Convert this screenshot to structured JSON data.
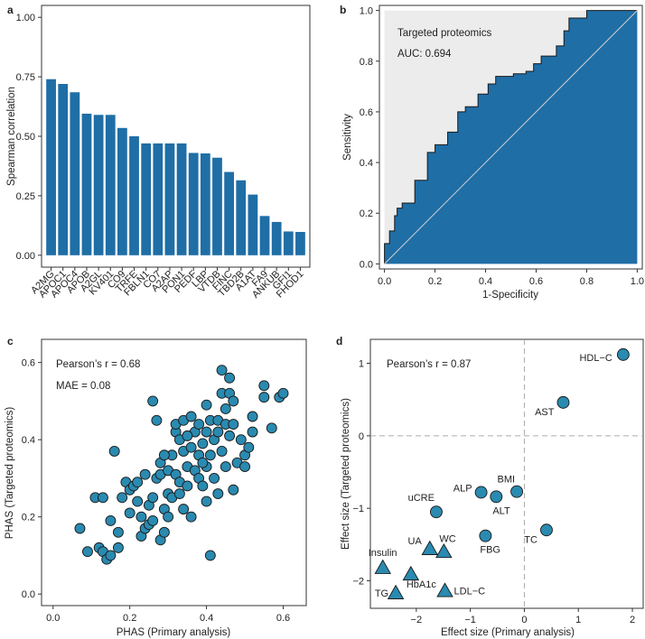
{
  "colors": {
    "bar": "#1f6ea6",
    "marker": "#2a8ab0",
    "roc_fill": "#1f6ea6",
    "roc_shade": "#ececec",
    "axis": "#333333",
    "dash": "#aaaaaa"
  },
  "chart_data": [
    {
      "panel": "a",
      "type": "bar",
      "ylabel": "Spearman correlation",
      "ylim": [
        -0.05,
        1.05
      ],
      "yticks": [
        0.0,
        0.25,
        0.5,
        0.75,
        1.0
      ],
      "ytick_labels": [
        "0.00",
        "0.25",
        "0.50",
        "0.75",
        "1.00"
      ],
      "categories": [
        "A2MG",
        "APOC1",
        "APOC4",
        "APOB",
        "A2GL",
        "KV401",
        "CO9",
        "TRFE",
        "FBLN1",
        "CO7",
        "A2AP",
        "PON1",
        "PEDF",
        "LBP",
        "VTDB",
        "FINC",
        "TBD2B",
        "A1AT",
        "FA9",
        "ANKUB",
        "GFI1",
        "FHOD1"
      ],
      "values": [
        0.74,
        0.72,
        0.685,
        0.595,
        0.59,
        0.59,
        0.535,
        0.5,
        0.47,
        0.47,
        0.47,
        0.47,
        0.43,
        0.428,
        0.41,
        0.35,
        0.315,
        0.255,
        0.165,
        0.14,
        0.1,
        0.098
      ]
    },
    {
      "panel": "b",
      "type": "line",
      "xlabel": "1-Specificity",
      "ylabel": "Sensitivity",
      "xlim": [
        -0.02,
        1.02
      ],
      "ylim": [
        -0.02,
        1.02
      ],
      "xticks": [
        0.0,
        0.2,
        0.4,
        0.6,
        0.8,
        1.0
      ],
      "xtick_labels": [
        "0.0",
        "0.2",
        "0.4",
        "0.6",
        "0.8",
        "1.0"
      ],
      "yticks": [
        0.0,
        0.2,
        0.4,
        0.6,
        0.8,
        1.0
      ],
      "ytick_labels": [
        "0.0",
        "0.2",
        "0.4",
        "0.6",
        "0.8",
        "1.0"
      ],
      "legend": "Targeted proteomics",
      "auc_text": "AUC: 0.694",
      "roc_x": [
        0,
        0,
        0.02,
        0.02,
        0.04,
        0.04,
        0.05,
        0.05,
        0.07,
        0.07,
        0.12,
        0.12,
        0.17,
        0.17,
        0.2,
        0.2,
        0.25,
        0.25,
        0.29,
        0.29,
        0.32,
        0.32,
        0.37,
        0.37,
        0.41,
        0.41,
        0.44,
        0.44,
        0.51,
        0.51,
        0.56,
        0.56,
        0.59,
        0.59,
        0.62,
        0.62,
        0.68,
        0.68,
        0.71,
        0.71,
        0.73,
        0.73,
        0.8,
        0.8,
        1.0
      ],
      "roc_y": [
        0,
        0.08,
        0.08,
        0.13,
        0.13,
        0.19,
        0.19,
        0.22,
        0.22,
        0.24,
        0.24,
        0.33,
        0.33,
        0.44,
        0.44,
        0.47,
        0.47,
        0.52,
        0.52,
        0.6,
        0.6,
        0.62,
        0.62,
        0.67,
        0.67,
        0.71,
        0.71,
        0.74,
        0.74,
        0.75,
        0.75,
        0.76,
        0.76,
        0.79,
        0.79,
        0.82,
        0.82,
        0.86,
        0.86,
        0.92,
        0.92,
        0.97,
        0.97,
        1.0,
        1.0
      ]
    },
    {
      "panel": "c",
      "type": "scatter",
      "xlabel": "PHAS (Primary analysis)",
      "ylabel": "PHAS (Targeted proteomics)",
      "xlim": [
        -0.03,
        0.66
      ],
      "ylim": [
        -0.03,
        0.66
      ],
      "xticks": [
        0.0,
        0.2,
        0.4,
        0.6
      ],
      "xtick_labels": [
        "0.0",
        "0.2",
        "0.4",
        "0.6"
      ],
      "yticks": [
        0.0,
        0.2,
        0.4,
        0.6
      ],
      "ytick_labels": [
        "0.0",
        "0.2",
        "0.4",
        "0.6"
      ],
      "annotation_r": "Pearson’s r = 0.68",
      "annotation_mae": "MAE = 0.08",
      "points": [
        [
          0.07,
          0.17
        ],
        [
          0.09,
          0.11
        ],
        [
          0.11,
          0.25
        ],
        [
          0.12,
          0.12
        ],
        [
          0.13,
          0.25
        ],
        [
          0.13,
          0.11
        ],
        [
          0.14,
          0.09
        ],
        [
          0.15,
          0.19
        ],
        [
          0.15,
          0.1
        ],
        [
          0.16,
          0.37
        ],
        [
          0.17,
          0.12
        ],
        [
          0.17,
          0.16
        ],
        [
          0.18,
          0.25
        ],
        [
          0.19,
          0.29
        ],
        [
          0.2,
          0.27
        ],
        [
          0.2,
          0.21
        ],
        [
          0.21,
          0.28
        ],
        [
          0.22,
          0.24
        ],
        [
          0.23,
          0.2
        ],
        [
          0.23,
          0.15
        ],
        [
          0.24,
          0.17
        ],
        [
          0.24,
          0.31
        ],
        [
          0.25,
          0.23
        ],
        [
          0.25,
          0.18
        ],
        [
          0.26,
          0.19
        ],
        [
          0.26,
          0.5
        ],
        [
          0.26,
          0.25
        ],
        [
          0.27,
          0.3
        ],
        [
          0.27,
          0.45
        ],
        [
          0.28,
          0.31
        ],
        [
          0.28,
          0.14
        ],
        [
          0.28,
          0.34
        ],
        [
          0.29,
          0.22
        ],
        [
          0.29,
          0.16
        ],
        [
          0.3,
          0.32
        ],
        [
          0.3,
          0.26
        ],
        [
          0.3,
          0.2
        ],
        [
          0.31,
          0.36
        ],
        [
          0.31,
          0.25
        ],
        [
          0.32,
          0.42
        ],
        [
          0.32,
          0.44
        ],
        [
          0.32,
          0.31
        ],
        [
          0.33,
          0.4
        ],
        [
          0.33,
          0.29
        ],
        [
          0.34,
          0.45
        ],
        [
          0.34,
          0.37
        ],
        [
          0.34,
          0.22
        ],
        [
          0.35,
          0.33
        ],
        [
          0.35,
          0.28
        ],
        [
          0.36,
          0.46
        ],
        [
          0.36,
          0.38
        ],
        [
          0.36,
          0.2
        ],
        [
          0.37,
          0.42
        ],
        [
          0.37,
          0.32
        ],
        [
          0.38,
          0.3
        ],
        [
          0.38,
          0.44
        ],
        [
          0.38,
          0.36
        ],
        [
          0.39,
          0.28
        ],
        [
          0.39,
          0.39
        ],
        [
          0.4,
          0.49
        ],
        [
          0.4,
          0.42
        ],
        [
          0.4,
          0.33
        ],
        [
          0.4,
          0.24
        ],
        [
          0.41,
          0.45
        ],
        [
          0.41,
          0.36
        ],
        [
          0.41,
          0.1
        ],
        [
          0.42,
          0.4
        ],
        [
          0.42,
          0.3
        ],
        [
          0.43,
          0.45
        ],
        [
          0.43,
          0.26
        ],
        [
          0.44,
          0.58
        ],
        [
          0.44,
          0.52
        ],
        [
          0.44,
          0.37
        ],
        [
          0.45,
          0.44
        ],
        [
          0.45,
          0.33
        ],
        [
          0.46,
          0.56
        ],
        [
          0.46,
          0.52
        ],
        [
          0.46,
          0.41
        ],
        [
          0.47,
          0.5
        ],
        [
          0.47,
          0.44
        ],
        [
          0.47,
          0.27
        ],
        [
          0.48,
          0.34
        ],
        [
          0.49,
          0.4
        ],
        [
          0.5,
          0.36
        ],
        [
          0.5,
          0.33
        ],
        [
          0.51,
          0.38
        ],
        [
          0.52,
          0.46
        ],
        [
          0.52,
          0.42
        ],
        [
          0.55,
          0.54
        ],
        [
          0.55,
          0.51
        ],
        [
          0.57,
          0.43
        ],
        [
          0.59,
          0.51
        ],
        [
          0.6,
          0.52
        ],
        [
          0.45,
          0.48
        ],
        [
          0.43,
          0.42
        ],
        [
          0.39,
          0.34
        ],
        [
          0.35,
          0.41
        ],
        [
          0.33,
          0.26
        ],
        [
          0.29,
          0.36
        ],
        [
          0.22,
          0.29
        ]
      ]
    },
    {
      "panel": "d",
      "type": "scatter",
      "xlabel": "Effect size (Primary analysis)",
      "ylabel": "Effect size (Targeted proteomics)",
      "xlim": [
        -2.85,
        2.2
      ],
      "ylim": [
        -2.38,
        1.33
      ],
      "xticks": [
        -2,
        -1,
        0,
        1,
        2
      ],
      "xtick_labels": [
        "−2",
        "−1",
        "0",
        "1",
        "2"
      ],
      "yticks": [
        -2,
        -1,
        0,
        1
      ],
      "ytick_labels": [
        "−2",
        "−1",
        "0",
        "1"
      ],
      "annotation_r": "Pearson’s r = 0.87",
      "points": [
        {
          "label": "HDL−C",
          "x": 1.83,
          "y": 1.12,
          "shape": "circle",
          "anchor": "end",
          "dx": -12,
          "dy": 7
        },
        {
          "label": "AST",
          "x": 0.72,
          "y": 0.46,
          "shape": "circle",
          "anchor": "end",
          "dx": -10,
          "dy": 14
        },
        {
          "label": "BMI",
          "x": -0.14,
          "y": -0.77,
          "shape": "circle",
          "anchor": "end",
          "dx": -2,
          "dy": -10
        },
        {
          "label": "ALP",
          "x": -0.8,
          "y": -0.78,
          "shape": "circle",
          "anchor": "end",
          "dx": -10,
          "dy": -1
        },
        {
          "label": "ALT",
          "x": -0.52,
          "y": -0.84,
          "shape": "circle",
          "anchor": "start",
          "dx": -4,
          "dy": 19
        },
        {
          "label": "uCRE",
          "x": -1.63,
          "y": -1.05,
          "shape": "circle",
          "anchor": "end",
          "dx": -2,
          "dy": -12
        },
        {
          "label": "FBG",
          "x": -0.72,
          "y": -1.38,
          "shape": "circle",
          "anchor": "start",
          "dx": -6,
          "dy": 19
        },
        {
          "label": "TC",
          "x": 0.41,
          "y": -1.3,
          "shape": "circle",
          "anchor": "end",
          "dx": -10,
          "dy": 14
        },
        {
          "label": "UA",
          "x": -1.75,
          "y": -1.56,
          "shape": "triangle",
          "anchor": "end",
          "dx": -9,
          "dy": -5
        },
        {
          "label": "WC",
          "x": -1.49,
          "y": -1.6,
          "shape": "triangle",
          "anchor": "start",
          "dx": -5,
          "dy": -11
        },
        {
          "label": "Insulin",
          "x": -2.62,
          "y": -1.82,
          "shape": "triangle",
          "anchor": "start",
          "dx": -16,
          "dy": -13
        },
        {
          "label": "HbA1c",
          "x": -2.1,
          "y": -1.91,
          "shape": "triangle",
          "anchor": "start",
          "dx": -5,
          "dy": 15
        },
        {
          "label": "TG",
          "x": -2.38,
          "y": -2.17,
          "shape": "triangle",
          "anchor": "end",
          "dx": -8,
          "dy": 4
        },
        {
          "label": "LDL−C",
          "x": -1.47,
          "y": -2.14,
          "shape": "triangle",
          "anchor": "start",
          "dx": 10,
          "dy": 4
        }
      ]
    }
  ]
}
